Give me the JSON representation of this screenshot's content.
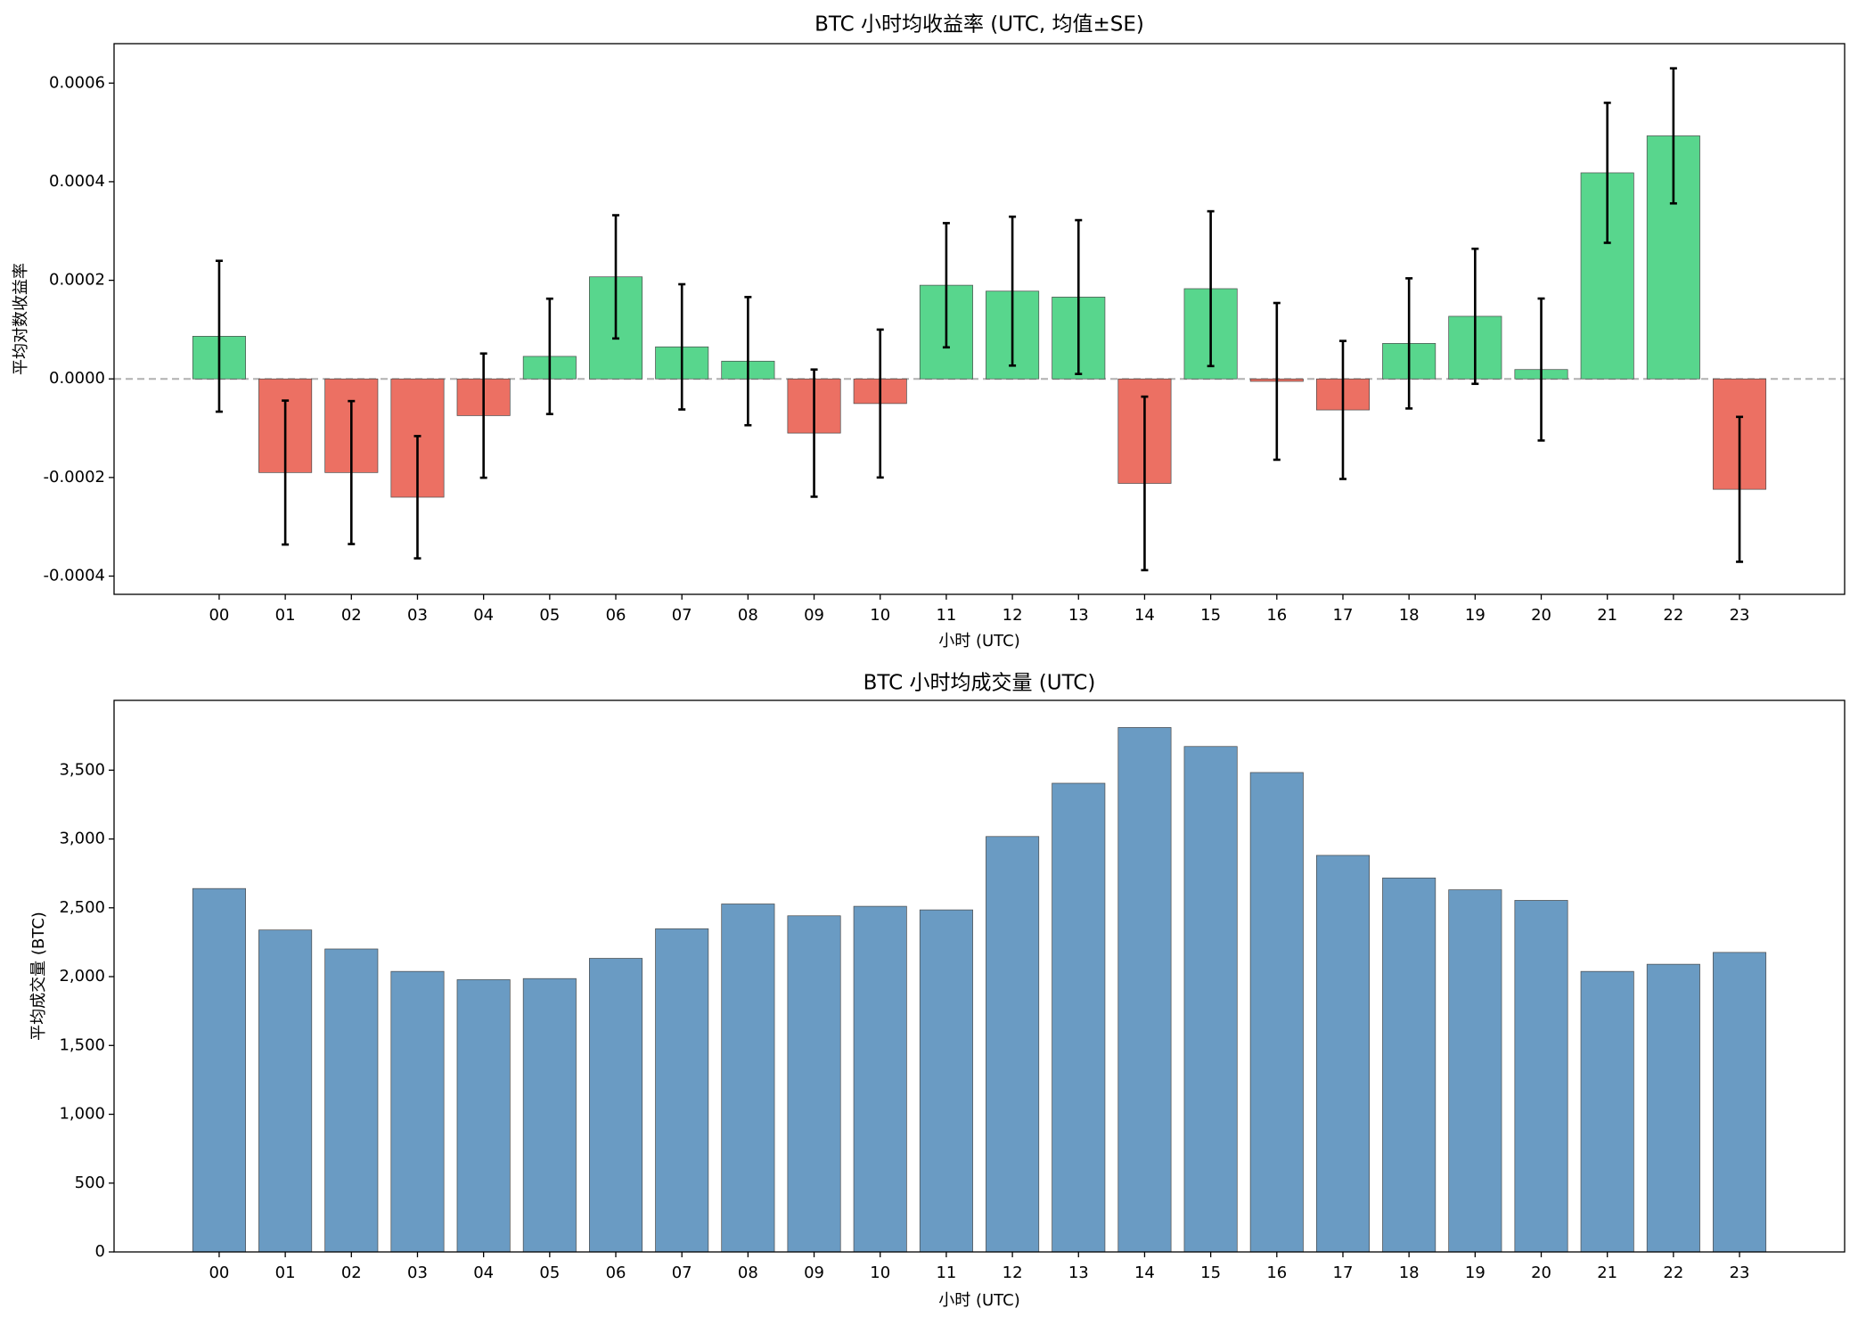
{
  "chart_data": [
    {
      "type": "bar",
      "title": "BTC 小时均收益率 (UTC, 均值±SE)",
      "x_label": "小时 (UTC)",
      "y_label": "平均对数收益率",
      "categories": [
        "00",
        "01",
        "02",
        "03",
        "04",
        "05",
        "06",
        "07",
        "08",
        "09",
        "10",
        "11",
        "12",
        "13",
        "14",
        "15",
        "16",
        "17",
        "18",
        "19",
        "20",
        "21",
        "22",
        "23"
      ],
      "values": [
        8.65e-05,
        -0.00019,
        -0.00019,
        -0.00024,
        -7.45e-05,
        4.57e-05,
        0.000207,
        6.5e-05,
        3.6e-05,
        -0.00011,
        -5e-05,
        0.00019,
        0.000178,
        0.000166,
        -0.000212,
        0.000183,
        -5e-06,
        -6.3e-05,
        7.2e-05,
        0.000127,
        1.9e-05,
        0.000418,
        0.000493,
        -0.000224
      ],
      "errors": [
        0.000153,
        0.000146,
        0.000145,
        0.000124,
        0.000126,
        0.000117,
        0.000125,
        0.000127,
        0.00013,
        0.000129,
        0.00015,
        0.000126,
        0.000151,
        0.000156,
        0.000176,
        0.000157,
        0.000159,
        0.00014,
        0.000132,
        0.000137,
        0.000144,
        0.000142,
        0.000137,
        0.000147
      ],
      "color_positive": "#58d68d",
      "color_negative": "#ec7063",
      "ylim": [
        -0.000437,
        0.00068
      ],
      "yticks": [
        -0.0004,
        -0.0002,
        {
          "value": 0,
          "label": "0.0000"
        },
        0.0002,
        0.0004,
        0.0006
      ],
      "zero_line": true
    },
    {
      "type": "bar",
      "title": "BTC 小时均成交量 (UTC)",
      "x_label": "小时 (UTC)",
      "y_label": "平均成交量 (BTC)",
      "categories": [
        "00",
        "01",
        "02",
        "03",
        "04",
        "05",
        "06",
        "07",
        "08",
        "09",
        "10",
        "11",
        "12",
        "13",
        "14",
        "15",
        "16",
        "17",
        "18",
        "19",
        "20",
        "21",
        "22",
        "23"
      ],
      "values": [
        2640,
        2339,
        2201,
        2038,
        1978,
        1986,
        2133,
        2348,
        2528,
        2442,
        2511,
        2485,
        3018,
        3405,
        3810,
        3672,
        3483,
        2881,
        2717,
        2631,
        2554,
        2038,
        2090,
        2176
      ],
      "color": "#6a9bc3",
      "ylim": [
        0,
        4007
      ],
      "yticks": [
        0,
        500,
        {
          "value": 1000,
          "label": "1,000"
        },
        {
          "value": 1500,
          "label": "1,500"
        },
        {
          "value": 2000,
          "label": "2,000"
        },
        {
          "value": 2500,
          "label": "2,500"
        },
        {
          "value": 3000,
          "label": "3,000"
        },
        {
          "value": 3500,
          "label": "3,500"
        }
      ]
    }
  ]
}
